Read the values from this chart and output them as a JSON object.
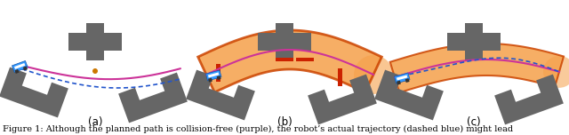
{
  "caption": "Figure 1: Although the planned path is collision-free (purple), the robot’s actual trajectory (dashed blue) might lead",
  "subcaptions": [
    "(a)",
    "(b)",
    "(c)"
  ],
  "background_color": "#ffffff",
  "caption_fontsize": 7.0,
  "subcaption_fontsize": 8.5,
  "fig_width": 6.4,
  "fig_height": 1.52,
  "obstacle_color": "#666666",
  "tube_color": "#f5a04a",
  "tube_edge_color": "#cc4400",
  "path_purple": "#cc3399",
  "path_blue": "#2255cc",
  "robot_body": "#3399ff",
  "white_stripe": "#ffffff"
}
